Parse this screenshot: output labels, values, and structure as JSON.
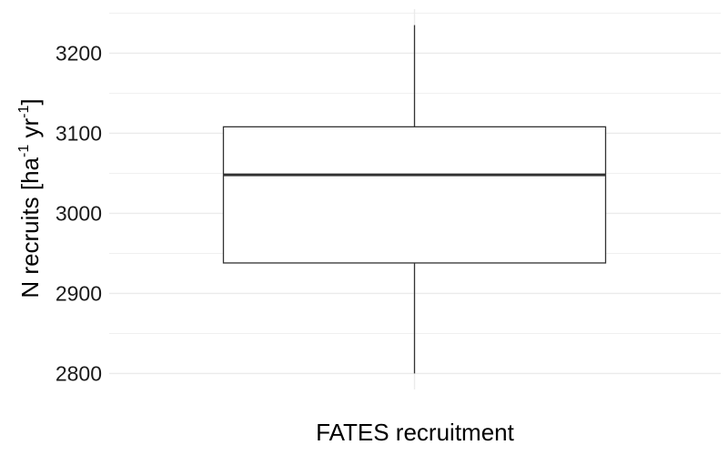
{
  "chart_data": {
    "type": "box",
    "categories": [
      "FATES recruitment"
    ],
    "boxes": [
      {
        "category": "FATES recruitment",
        "whisker_low": 2800,
        "q1": 2938,
        "median": 3048,
        "q3": 3108,
        "whisker_high": 3235
      }
    ],
    "xlabel": "FATES recruitment",
    "ylabel": {
      "prefix": "N recruits [ha",
      "exp1": "-1",
      "middle": " yr",
      "exp2": "-1",
      "suffix": "]"
    },
    "yticks": [
      2800,
      2900,
      3000,
      3100,
      3200
    ],
    "ylim": [
      2780,
      3255
    ],
    "grid": true,
    "legend": "none",
    "colors": {
      "grid": "#ebebeb",
      "box_stroke": "#333333",
      "box_fill": "#ffffff"
    }
  }
}
